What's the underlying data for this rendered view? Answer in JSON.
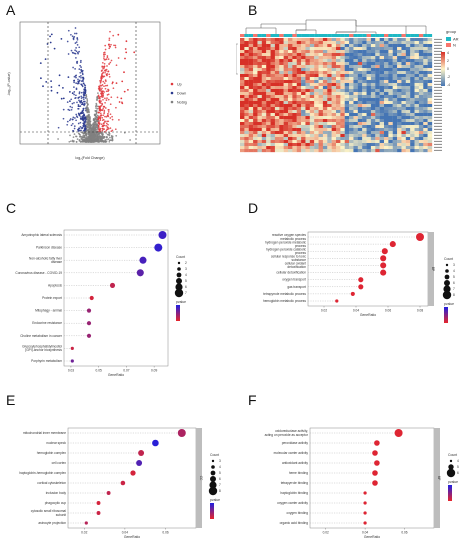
{
  "figure": {
    "panels": {
      "A": {
        "letter": "A"
      },
      "B": {
        "letter": "B"
      },
      "C": {
        "letter": "C"
      },
      "D": {
        "letter": "D"
      },
      "E": {
        "letter": "E"
      },
      "F": {
        "letter": "F"
      }
    }
  },
  "colors": {
    "up": "#e0393e",
    "down": "#2b3a8f",
    "nosig": "#808080",
    "heat_high": "#d73027",
    "heat_mid": "#fdf3c6",
    "heat_low": "#4575b4",
    "group_a": "#1fb8c4",
    "group_b": "#f8766d",
    "dot_low": "#e8252a",
    "dot_high": "#1f1fe0",
    "strip": "#bdbdbd"
  },
  "chart_data": [
    {
      "id": "A",
      "type": "scatter",
      "xlabel": "log₂(Fold Change)",
      "ylabel": "-log₁₀(P-value)",
      "legend": [
        {
          "name": "Up",
          "color": "#e0393e"
        },
        {
          "name": "Down",
          "color": "#2b3a8f"
        },
        {
          "name": "NoSig",
          "color": "#808080"
        }
      ],
      "legend_position": "right"
    },
    {
      "id": "B",
      "type": "heatmap",
      "legend_title": "group",
      "groups": [
        "AR",
        "N"
      ],
      "scale_ticks": [
        "4",
        "2",
        "0",
        "-2",
        "-4"
      ]
    },
    {
      "id": "C",
      "type": "scatter",
      "xlabel": "GeneRatio",
      "x_ticks": [
        "0.03",
        "0.05",
        "0.07",
        "0.09"
      ],
      "xlim": [
        0.025,
        0.1
      ],
      "categories": [
        "Amyotrophic lateral sclerosis",
        "Parkinson disease",
        "Non-alcoholic fatty liver disease",
        "Coronavirus disease - COVID-19",
        "Apoptosis",
        "Protein export",
        "Mitophagy - animal",
        "Endocrine resistance",
        "Choline metabolism in cancer",
        "Glycosylphosphatidylinositol (GPI)-anchor biosynthesis",
        "Porphyrin metabolism"
      ],
      "x": [
        0.096,
        0.093,
        0.082,
        0.08,
        0.06,
        0.045,
        0.043,
        0.043,
        0.043,
        0.031,
        0.031
      ],
      "count": [
        7,
        7,
        6,
        6,
        4,
        3,
        3,
        3,
        3,
        2,
        2
      ],
      "pvalue_level": [
        0.85,
        0.9,
        0.8,
        0.7,
        0.2,
        0.1,
        0.4,
        0.4,
        0.4,
        0.15,
        0.6
      ],
      "size_legend_title": "Count",
      "size_legend": [
        "2",
        "3",
        "4",
        "5",
        "6",
        "7"
      ],
      "color_legend_title": "pvalue"
    },
    {
      "id": "D",
      "type": "scatter",
      "xlabel": "GeneRatio",
      "x_ticks": [
        "0.02",
        "0.04",
        "0.06",
        "0.08"
      ],
      "xlim": [
        0.01,
        0.085
      ],
      "categories": [
        "reactive oxygen species metabolic process",
        "hydrogen peroxide metabolic process",
        "hydrogen peroxide catabolic process",
        "cellular response to toxic substance",
        "cellular oxidant detoxification",
        "cellular detoxification",
        "oxygen transport",
        "gas transport",
        "tetrapyrrole metabolic process",
        "hemoglobin metabolic process"
      ],
      "x": [
        0.08,
        0.063,
        0.058,
        0.057,
        0.057,
        0.057,
        0.043,
        0.043,
        0.038,
        0.028
      ],
      "count": [
        8,
        6,
        6,
        6,
        6,
        6,
        5,
        5,
        4,
        3
      ],
      "pvalue_level": [
        0.05,
        0.05,
        0.05,
        0.05,
        0.05,
        0.05,
        0.05,
        0.05,
        0.05,
        0.05
      ],
      "size_legend_title": "Count",
      "size_legend": [
        "3",
        "4",
        "5",
        "6",
        "7",
        "8"
      ],
      "color_legend_title": "pvalue",
      "strip_label": "BP"
    },
    {
      "id": "E",
      "type": "scatter",
      "xlabel": "GeneRatio",
      "x_ticks": [
        "0.02",
        "0.04",
        "0.06"
      ],
      "xlim": [
        0.012,
        0.075
      ],
      "categories": [
        "mitochondrial inner membrane",
        "nuclear speck",
        "hemoglobin complex",
        "cell cortex",
        "haptoglobin-hemoglobin complex",
        "cortical cytoskeleton",
        "inclusion body",
        "phagocytic cup",
        "cytosolic small ribosomal subunit",
        "astrocyte projection"
      ],
      "x": [
        0.068,
        0.055,
        0.048,
        0.047,
        0.044,
        0.039,
        0.032,
        0.027,
        0.027,
        0.021
      ],
      "count": [
        9,
        7,
        6,
        6,
        5,
        4,
        3,
        3,
        3,
        2
      ],
      "pvalue_level": [
        0.3,
        0.95,
        0.2,
        0.75,
        0.1,
        0.15,
        0.2,
        0.1,
        0.15,
        0.25
      ],
      "size_legend_title": "Count",
      "size_legend": [
        "3",
        "4",
        "5",
        "6",
        "7",
        "8"
      ],
      "color_legend_title": "pvalue",
      "strip_label": "CC"
    },
    {
      "id": "F",
      "type": "scatter",
      "xlabel": "GeneRatio",
      "x_ticks": [
        "0.02",
        "0.04",
        "0.06"
      ],
      "xlim": [
        0.012,
        0.075
      ],
      "categories": [
        "oxidoreductase activity, acting on peroxide as acceptor",
        "peroxidase activity",
        "molecular carrier activity",
        "antioxidant activity",
        "heme binding",
        "tetrapyrrole binding",
        "haptoglobin binding",
        "oxygen carrier activity",
        "oxygen binding",
        "organic acid binding"
      ],
      "x": [
        0.057,
        0.046,
        0.045,
        0.046,
        0.045,
        0.045,
        0.04,
        0.04,
        0.04,
        0.04
      ],
      "count": [
        6,
        5,
        5,
        5,
        5,
        5,
        4,
        4,
        4,
        4
      ],
      "pvalue_level": [
        0.05,
        0.05,
        0.05,
        0.05,
        0.05,
        0.05,
        0.05,
        0.05,
        0.05,
        0.05
      ],
      "size_legend_title": "Count",
      "size_legend": [
        "4",
        "5",
        "6"
      ],
      "color_legend_title": "pvalue",
      "strip_label": "MF"
    }
  ]
}
